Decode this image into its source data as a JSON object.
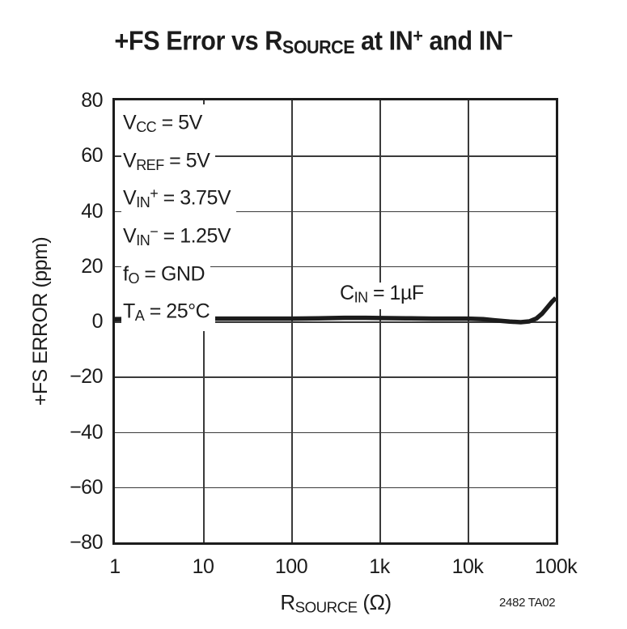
{
  "title": {
    "seg1": "+FS Error vs R",
    "sub1": "SOURCE",
    "seg2": " at IN",
    "sup2": "+",
    "seg3": " and IN",
    "sup3": "−"
  },
  "y_axis": {
    "label": "+FS ERROR (ppm)"
  },
  "x_axis": {
    "label_base": "R",
    "label_sub": "SOURCE",
    "label_rest": " (Ω)"
  },
  "part_number": "2482 TA02",
  "annotations": {
    "lines": [
      {
        "base": "V",
        "sub": "CC",
        "sup": "",
        "rest": " = 5V"
      },
      {
        "base": "V",
        "sub": "REF",
        "sup": "",
        "rest": " = 5V"
      },
      {
        "base": "V",
        "sub": "IN",
        "sup": "+",
        "rest": " = 3.75V"
      },
      {
        "base": "V",
        "sub": "IN",
        "sup": "−",
        "rest": " = 1.25V"
      },
      {
        "base": "f",
        "sub": "O",
        "sup": "",
        "rest": " = GND"
      },
      {
        "base": "T",
        "sub": "A",
        "sup": "",
        "rest": " = 25°C"
      }
    ],
    "curve_label": {
      "base": "C",
      "sub": "IN",
      "rest": " = 1µF"
    }
  },
  "chart_data": {
    "type": "line",
    "title": "+FS Error vs RSOURCE at IN+ and IN−",
    "xlabel": "RSOURCE (Ω)",
    "ylabel": "+FS ERROR (ppm)",
    "x_scale": "log",
    "x_range": [
      1,
      100000
    ],
    "y_range": [
      -80,
      80
    ],
    "grid": true,
    "legend_position": "none",
    "xticks": [
      "1",
      "10",
      "100",
      "1k",
      "10k",
      "100k"
    ],
    "yticks": [
      "80",
      "60",
      "40",
      "20",
      "0",
      "−20",
      "−40",
      "−60",
      "−80"
    ],
    "series": [
      {
        "name": "CIN = 1µF",
        "points": [
          {
            "r": 1,
            "ppm": 0.8
          },
          {
            "r": 2,
            "ppm": 0.9
          },
          {
            "r": 4,
            "ppm": 1.0
          },
          {
            "r": 7,
            "ppm": 1.0
          },
          {
            "r": 10,
            "ppm": 1.0
          },
          {
            "r": 20,
            "ppm": 1.0
          },
          {
            "r": 40,
            "ppm": 1.0
          },
          {
            "r": 70,
            "ppm": 1.0
          },
          {
            "r": 100,
            "ppm": 1.0
          },
          {
            "r": 200,
            "ppm": 1.1
          },
          {
            "r": 400,
            "ppm": 1.3
          },
          {
            "r": 700,
            "ppm": 1.3
          },
          {
            "r": 1000,
            "ppm": 1.2
          },
          {
            "r": 2000,
            "ppm": 1.1
          },
          {
            "r": 4000,
            "ppm": 1.0
          },
          {
            "r": 7000,
            "ppm": 1.0
          },
          {
            "r": 10000,
            "ppm": 1.0
          },
          {
            "r": 15000,
            "ppm": 0.8
          },
          {
            "r": 20000,
            "ppm": 0.4
          },
          {
            "r": 30000,
            "ppm": -0.1
          },
          {
            "r": 40000,
            "ppm": -0.3
          },
          {
            "r": 50000,
            "ppm": 0.0
          },
          {
            "r": 60000,
            "ppm": 1.0
          },
          {
            "r": 70000,
            "ppm": 2.8
          },
          {
            "r": 80000,
            "ppm": 5.0
          },
          {
            "r": 90000,
            "ppm": 7.0
          },
          {
            "r": 100000,
            "ppm": 8.5
          }
        ]
      }
    ],
    "colors": {
      "curve": "#1c1c1c",
      "grid": "#3a3a3a",
      "frame": "#1c1c1c",
      "text": "#1c1c1c"
    }
  }
}
